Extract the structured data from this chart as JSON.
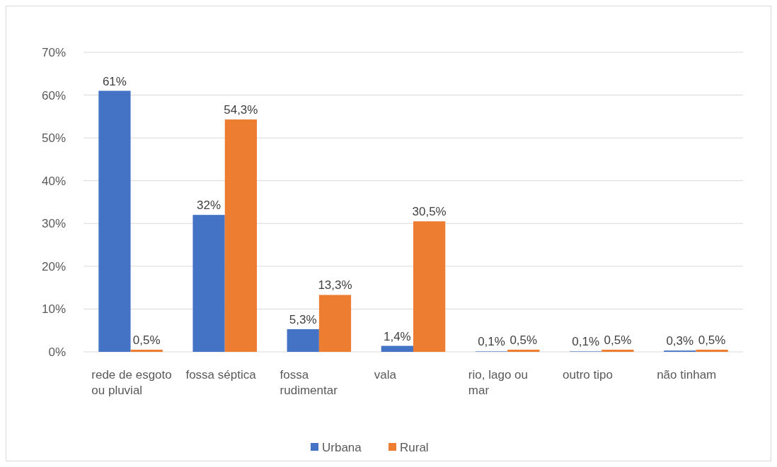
{
  "chart_data": {
    "type": "bar",
    "categories": [
      "rede de esgoto ou pluvial",
      "fossa séptica",
      "fossa rudimentar",
      "vala",
      "rio, lago ou mar",
      "outro tipo",
      "não tinham"
    ],
    "series": [
      {
        "name": "Urbana",
        "color": "#4472c4",
        "values": [
          61,
          32,
          5.3,
          1.4,
          0.1,
          0.1,
          0.3
        ],
        "value_labels": [
          "61%",
          "32%",
          "5,3%",
          "1,4%",
          "0,1%",
          "0,1%",
          "0,3%"
        ]
      },
      {
        "name": "Rural",
        "color": "#ed7d31",
        "values": [
          0.5,
          54.3,
          13.3,
          30.5,
          0.5,
          0.5,
          0.5
        ],
        "value_labels": [
          "0,5%",
          "54,3%",
          "13,3%",
          "30,5%",
          "0,5%",
          "0,5%",
          "0,5%"
        ]
      }
    ],
    "ylim": [
      0,
      70
    ],
    "yticks": [
      {
        "value": 0,
        "label": "0%"
      },
      {
        "value": 10,
        "label": "10%"
      },
      {
        "value": 20,
        "label": "20%"
      },
      {
        "value": 30,
        "label": "30%"
      },
      {
        "value": 40,
        "label": "40%"
      },
      {
        "value": 50,
        "label": "50%"
      },
      {
        "value": 60,
        "label": "60%"
      },
      {
        "value": 70,
        "label": "70%"
      }
    ],
    "grid": "y",
    "legend": "bottom"
  }
}
